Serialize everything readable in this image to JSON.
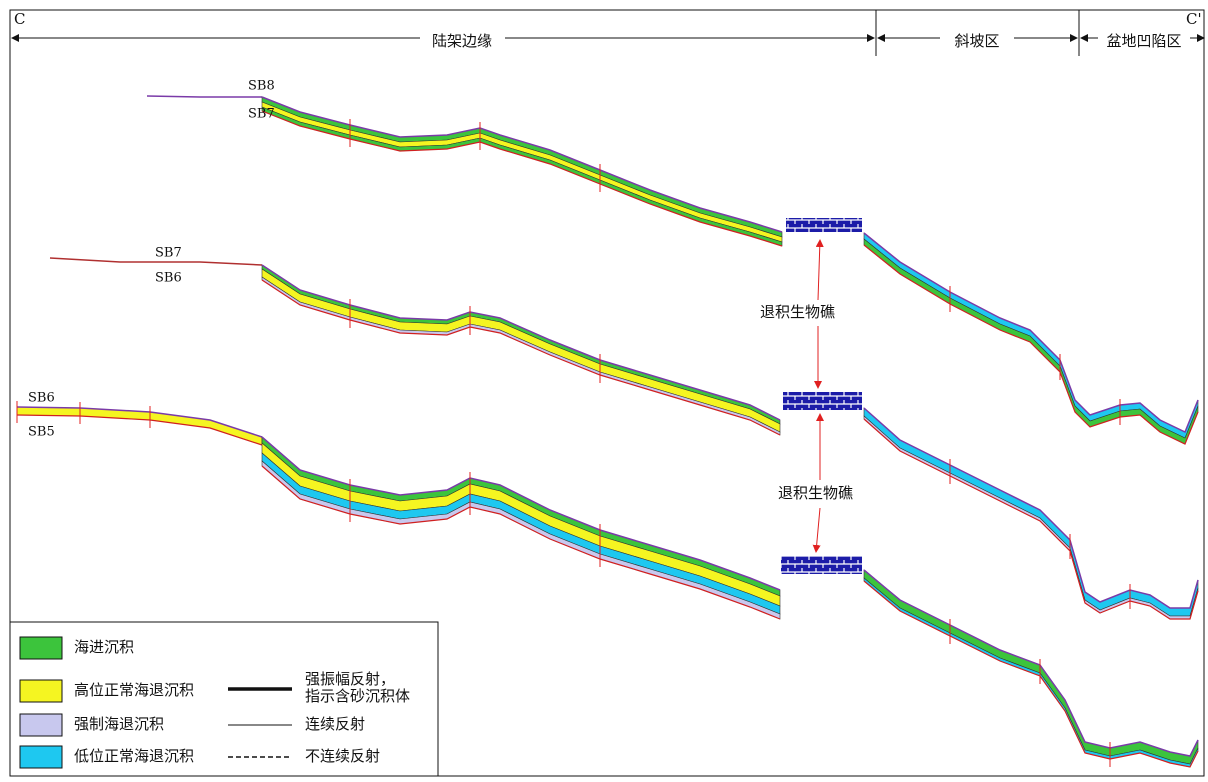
{
  "header": {
    "left_marker": "C",
    "right_marker": "C'",
    "zones": [
      "陆架边缘",
      "斜坡区",
      "盆地凹陷区"
    ]
  },
  "horizons": {
    "profile_1": {
      "top": "SB8",
      "base": "SB7"
    },
    "profile_2": {
      "top": "SB7",
      "base": "SB6"
    },
    "profile_3": {
      "top": "SB6",
      "base": "SB5"
    }
  },
  "annotations": [
    "退积生物礁",
    "退积生物礁"
  ],
  "legend": {
    "facies": [
      "海进沉积",
      "高位正常海退沉积",
      "强制海退沉积",
      "低位正常海退沉积"
    ],
    "reflections": [
      {
        "line1": "强振幅反射，",
        "line2": "指示含砂沉积体"
      },
      {
        "line1": "连续反射"
      },
      {
        "line1": "不连续反射"
      }
    ]
  }
}
